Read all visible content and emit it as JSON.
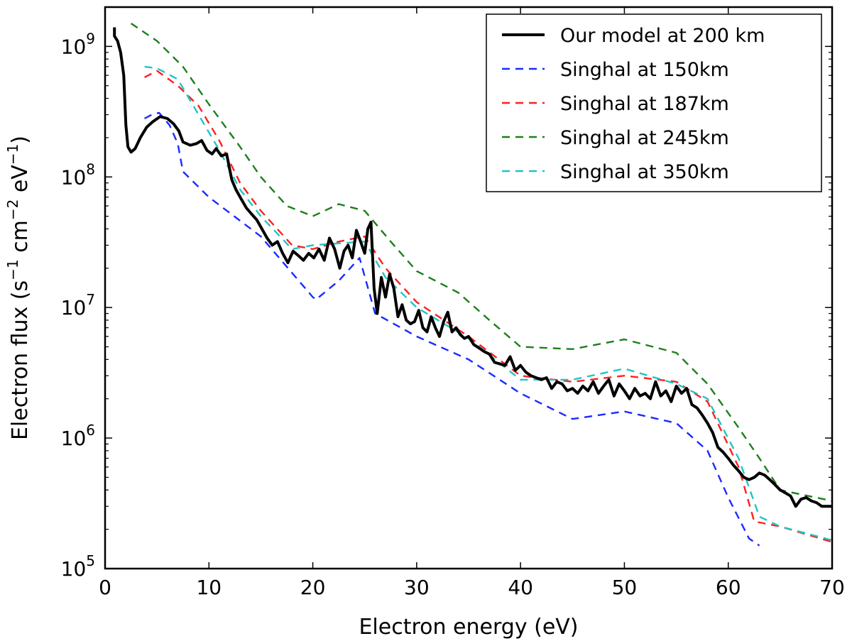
{
  "chart_data": {
    "type": "line",
    "title": "",
    "xlabel": "Electron energy (eV)",
    "ylabel_parts": [
      "Electron flux (s",
      "−1",
      " cm",
      "−2",
      " eV",
      "−1",
      ")"
    ],
    "xlim": [
      0,
      70
    ],
    "ylim": [
      100000,
      2000000000
    ],
    "yscale": "log",
    "grid": false,
    "legend_position": "top-right",
    "x_ticks": [
      0,
      10,
      20,
      30,
      40,
      50,
      60,
      70
    ],
    "y_ticks": [
      {
        "value": 100000,
        "base": "10",
        "exp": "5"
      },
      {
        "value": 1000000,
        "base": "10",
        "exp": "6"
      },
      {
        "value": 10000000,
        "base": "10",
        "exp": "7"
      },
      {
        "value": 100000000,
        "base": "10",
        "exp": "8"
      },
      {
        "value": 1000000000,
        "base": "10",
        "exp": "9"
      }
    ],
    "series": [
      {
        "name": "Our model at 200 km",
        "color": "#000000",
        "style": "solid",
        "points": [
          [
            0.9,
            1400000000
          ],
          [
            0.9,
            1200000000
          ],
          [
            1.2,
            1100000000
          ],
          [
            1.5,
            900000000
          ],
          [
            1.8,
            600000000
          ],
          [
            2.0,
            250000000
          ],
          [
            2.2,
            170000000
          ],
          [
            2.5,
            155000000
          ],
          [
            2.9,
            165000000
          ],
          [
            3.4,
            200000000
          ],
          [
            4.0,
            240000000
          ],
          [
            4.6,
            265000000
          ],
          [
            5.3,
            290000000
          ],
          [
            6.0,
            280000000
          ],
          [
            6.6,
            255000000
          ],
          [
            7.1,
            225000000
          ],
          [
            7.5,
            185000000
          ],
          [
            8.2,
            175000000
          ],
          [
            8.8,
            180000000
          ],
          [
            9.3,
            190000000
          ],
          [
            9.8,
            160000000
          ],
          [
            10.3,
            150000000
          ],
          [
            10.7,
            165000000
          ],
          [
            11.2,
            145000000
          ],
          [
            11.7,
            150000000
          ],
          [
            12.2,
            95000000
          ],
          [
            12.6,
            80000000
          ],
          [
            13.1,
            68000000
          ],
          [
            13.6,
            58000000
          ],
          [
            14.1,
            52000000
          ],
          [
            14.6,
            47000000
          ],
          [
            15.1,
            40000000
          ],
          [
            15.6,
            34000000
          ],
          [
            16.1,
            30000000
          ],
          [
            16.6,
            32000000
          ],
          [
            17.1,
            26000000
          ],
          [
            17.6,
            22000000
          ],
          [
            18.1,
            27000000
          ],
          [
            18.6,
            25000000
          ],
          [
            19.1,
            23000000
          ],
          [
            19.6,
            26000000
          ],
          [
            20.1,
            24000000
          ],
          [
            20.6,
            28000000
          ],
          [
            21.1,
            23000000
          ],
          [
            21.6,
            34000000
          ],
          [
            22.1,
            28000000
          ],
          [
            22.6,
            20000000
          ],
          [
            23.0,
            27000000
          ],
          [
            23.4,
            30000000
          ],
          [
            23.8,
            24000000
          ],
          [
            24.2,
            39000000
          ],
          [
            24.6,
            32000000
          ],
          [
            25.0,
            26000000
          ],
          [
            25.3,
            40000000
          ],
          [
            25.6,
            45000000
          ],
          [
            25.9,
            14000000
          ],
          [
            26.2,
            9000000
          ],
          [
            26.6,
            17000000
          ],
          [
            27.0,
            12000000
          ],
          [
            27.4,
            18000000
          ],
          [
            27.8,
            14000000
          ],
          [
            28.2,
            8500000
          ],
          [
            28.6,
            10500000
          ],
          [
            29.0,
            8000000
          ],
          [
            29.4,
            7500000
          ],
          [
            29.8,
            7800000
          ],
          [
            30.2,
            9500000
          ],
          [
            30.6,
            7000000
          ],
          [
            31.0,
            6500000
          ],
          [
            31.4,
            8500000
          ],
          [
            31.8,
            7000000
          ],
          [
            32.2,
            6000000
          ],
          [
            32.6,
            7800000
          ],
          [
            33.0,
            9200000
          ],
          [
            33.4,
            6500000
          ],
          [
            33.8,
            7000000
          ],
          [
            34.2,
            6200000
          ],
          [
            34.6,
            5800000
          ],
          [
            35.0,
            6000000
          ],
          [
            35.5,
            5200000
          ],
          [
            36.0,
            4900000
          ],
          [
            36.5,
            4600000
          ],
          [
            37.0,
            4400000
          ],
          [
            37.5,
            3800000
          ],
          [
            38.0,
            3700000
          ],
          [
            38.5,
            3600000
          ],
          [
            39.0,
            4200000
          ],
          [
            39.5,
            3300000
          ],
          [
            40.0,
            3600000
          ],
          [
            40.5,
            3200000
          ],
          [
            41.0,
            3000000
          ],
          [
            41.5,
            2900000
          ],
          [
            42.0,
            2800000
          ],
          [
            42.5,
            2900000
          ],
          [
            43.0,
            2400000
          ],
          [
            43.5,
            2700000
          ],
          [
            44.0,
            2600000
          ],
          [
            44.5,
            2300000
          ],
          [
            45.0,
            2400000
          ],
          [
            45.5,
            2200000
          ],
          [
            46.0,
            2500000
          ],
          [
            46.5,
            2300000
          ],
          [
            47.0,
            2700000
          ],
          [
            47.5,
            2200000
          ],
          [
            48.0,
            2500000
          ],
          [
            48.5,
            2800000
          ],
          [
            49.0,
            2100000
          ],
          [
            49.5,
            2600000
          ],
          [
            50.0,
            2300000
          ],
          [
            50.5,
            2000000
          ],
          [
            51.0,
            2400000
          ],
          [
            51.5,
            2100000
          ],
          [
            52.0,
            2200000
          ],
          [
            52.5,
            2000000
          ],
          [
            53.0,
            2700000
          ],
          [
            53.5,
            2100000
          ],
          [
            54.0,
            2300000
          ],
          [
            54.5,
            1900000
          ],
          [
            55.0,
            2500000
          ],
          [
            55.5,
            2200000
          ],
          [
            56.0,
            2400000
          ],
          [
            56.5,
            1800000
          ],
          [
            57.0,
            1700000
          ],
          [
            57.5,
            1500000
          ],
          [
            58.0,
            1300000
          ],
          [
            58.5,
            1100000
          ],
          [
            59.0,
            850000
          ],
          [
            59.5,
            780000
          ],
          [
            60.0,
            700000
          ],
          [
            60.5,
            620000
          ],
          [
            61.0,
            560000
          ],
          [
            61.5,
            500000
          ],
          [
            62.0,
            480000
          ],
          [
            62.5,
            500000
          ],
          [
            63.0,
            540000
          ],
          [
            63.5,
            520000
          ],
          [
            64.0,
            480000
          ],
          [
            64.5,
            440000
          ],
          [
            65.0,
            400000
          ],
          [
            65.5,
            380000
          ],
          [
            66.0,
            360000
          ],
          [
            66.5,
            300000
          ],
          [
            67.0,
            340000
          ],
          [
            67.5,
            350000
          ],
          [
            68.0,
            330000
          ],
          [
            68.5,
            320000
          ],
          [
            69.0,
            300000
          ],
          [
            70.0,
            300000
          ]
        ]
      },
      {
        "name": "Singhal at 150km",
        "color": "#1a2bff",
        "style": "dashed",
        "points": [
          [
            3.8,
            280000000
          ],
          [
            4.5,
            300000000
          ],
          [
            5.2,
            310000000
          ],
          [
            6.2,
            250000000
          ],
          [
            7.0,
            180000000
          ],
          [
            7.5,
            110000000
          ],
          [
            10,
            70000000
          ],
          [
            15,
            35000000
          ],
          [
            20,
            12000000
          ],
          [
            20.3,
            11500000
          ],
          [
            22.5,
            16000000
          ],
          [
            24.5,
            24000000
          ],
          [
            26,
            9000000
          ],
          [
            30,
            6000000
          ],
          [
            35,
            4000000
          ],
          [
            40,
            2200000
          ],
          [
            45,
            1400000
          ],
          [
            50,
            1600000
          ],
          [
            55,
            1300000
          ],
          [
            58,
            800000
          ],
          [
            60,
            350000
          ],
          [
            62,
            170000
          ],
          [
            63,
            150000
          ]
        ]
      },
      {
        "name": "Singhal at 187km",
        "color": "#ff1f1f",
        "style": "dashed",
        "points": [
          [
            3.8,
            580000000
          ],
          [
            5,
            650000000
          ],
          [
            7,
            500000000
          ],
          [
            9,
            350000000
          ],
          [
            11,
            190000000
          ],
          [
            13,
            90000000
          ],
          [
            15,
            55000000
          ],
          [
            18,
            30000000
          ],
          [
            20,
            28000000
          ],
          [
            22.5,
            32000000
          ],
          [
            25,
            35000000
          ],
          [
            27,
            20000000
          ],
          [
            30,
            11000000
          ],
          [
            35,
            6000000
          ],
          [
            40,
            3000000
          ],
          [
            45,
            2700000
          ],
          [
            50,
            3000000
          ],
          [
            55,
            2700000
          ],
          [
            58,
            1900000
          ],
          [
            61,
            600000
          ],
          [
            62.5,
            230000
          ],
          [
            65,
            210000
          ],
          [
            70,
            160000
          ]
        ]
      },
      {
        "name": "Singhal at 245km",
        "color": "#1a801a",
        "style": "dashed",
        "points": [
          [
            2.5,
            1500000000
          ],
          [
            5,
            1100000000
          ],
          [
            7.5,
            700000000
          ],
          [
            10,
            360000000
          ],
          [
            13,
            170000000
          ],
          [
            15,
            100000000
          ],
          [
            17.5,
            60000000
          ],
          [
            20,
            50000000
          ],
          [
            22.5,
            62000000
          ],
          [
            25,
            55000000
          ],
          [
            27.5,
            32000000
          ],
          [
            30,
            19000000
          ],
          [
            34,
            13000000
          ],
          [
            37,
            8000000
          ],
          [
            40,
            5000000
          ],
          [
            45,
            4800000
          ],
          [
            50,
            5700000
          ],
          [
            55,
            4500000
          ],
          [
            58,
            2600000
          ],
          [
            61,
            1200000
          ],
          [
            63,
            700000
          ],
          [
            65,
            400000
          ],
          [
            67,
            370000
          ],
          [
            70,
            330000
          ]
        ]
      },
      {
        "name": "Singhal at 350km",
        "color": "#22c4c4",
        "style": "dashed",
        "points": [
          [
            3.8,
            700000000
          ],
          [
            5,
            680000000
          ],
          [
            7,
            560000000
          ],
          [
            9,
            300000000
          ],
          [
            11,
            160000000
          ],
          [
            13,
            80000000
          ],
          [
            15,
            50000000
          ],
          [
            18,
            28000000
          ],
          [
            20,
            30000000
          ],
          [
            22.5,
            31000000
          ],
          [
            25,
            32000000
          ],
          [
            27,
            17000000
          ],
          [
            30,
            10000000
          ],
          [
            35,
            5800000
          ],
          [
            40,
            2800000
          ],
          [
            45,
            2800000
          ],
          [
            50,
            3400000
          ],
          [
            55,
            2600000
          ],
          [
            58,
            2000000
          ],
          [
            61,
            700000
          ],
          [
            63,
            250000
          ],
          [
            65,
            210000
          ],
          [
            70,
            165000
          ]
        ]
      }
    ]
  }
}
